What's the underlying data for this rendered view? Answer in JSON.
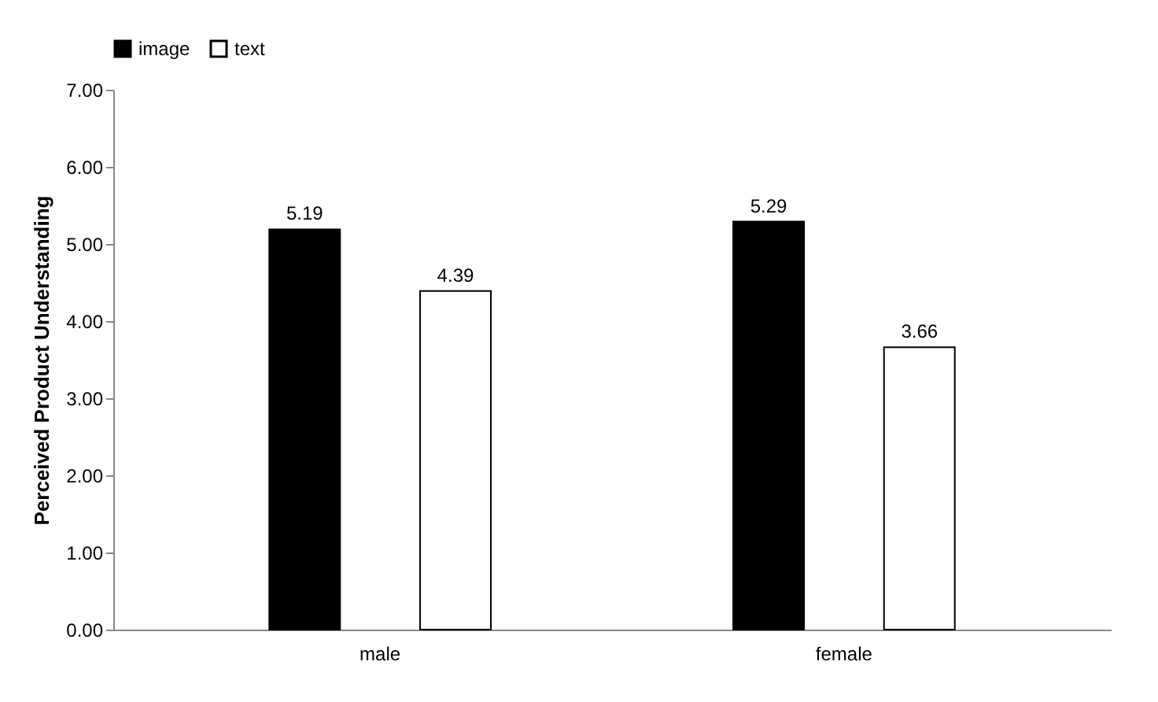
{
  "chart_data": {
    "type": "bar",
    "ylabel": "Perceived Product Understanding",
    "categories": [
      "male",
      "female"
    ],
    "series": [
      {
        "name": "image",
        "color": "#000000",
        "values": [
          5.19,
          5.29
        ]
      },
      {
        "name": "text",
        "color": "#ffffff",
        "values": [
          4.39,
          3.66
        ]
      }
    ],
    "ylim": [
      0,
      7
    ],
    "yticks": [
      {
        "value": 0,
        "label": "0.00"
      },
      {
        "value": 1,
        "label": "1.00"
      },
      {
        "value": 2,
        "label": "2.00"
      },
      {
        "value": 3,
        "label": "3.00"
      },
      {
        "value": 4,
        "label": "4.00"
      },
      {
        "value": 5,
        "label": "5.00"
      },
      {
        "value": 6,
        "label": "6.00"
      },
      {
        "value": 7,
        "label": "7.00"
      }
    ],
    "data_labels": true,
    "legend": "top",
    "grid": false
  }
}
